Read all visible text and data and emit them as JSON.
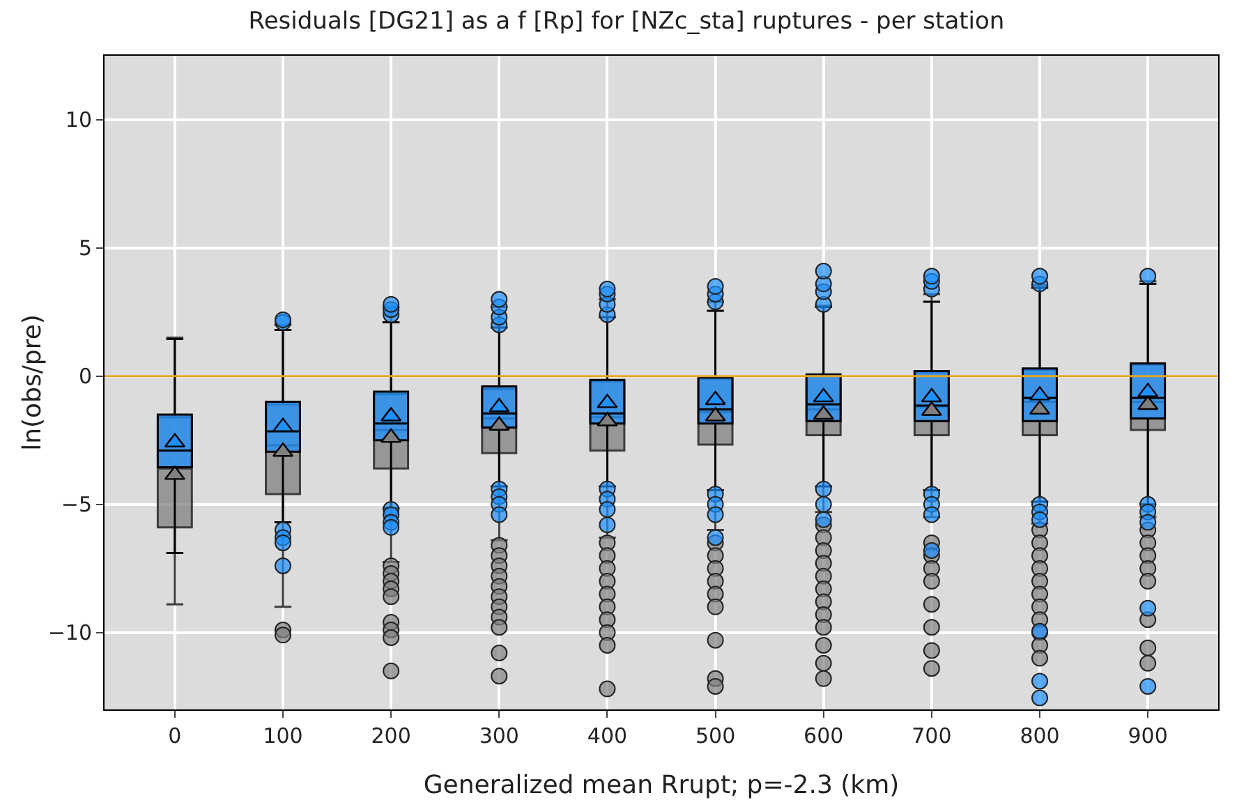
{
  "chart_data": {
    "type": "box",
    "title": "Residuals [DG21] as a f [Rp] for [NZc_sta] ruptures - per station",
    "xlabel": "Generalized mean Rrupt; p=-2.3 (km)",
    "ylabel": "ln(obs/pre)",
    "categories": [
      "0",
      "100",
      "200",
      "300",
      "400",
      "500",
      "600",
      "700",
      "800",
      "900"
    ],
    "ylim": [
      -13,
      12.5
    ],
    "yticks": [
      {
        "value": -10,
        "label": "−10"
      },
      {
        "value": -5,
        "label": "−5"
      },
      0,
      5,
      10
    ],
    "grid": true,
    "ref_lines": [
      {
        "axis": "y",
        "value": 0,
        "color": "#e0a526"
      }
    ],
    "series": [
      {
        "color": "#808080",
        "boxes": [
          {
            "low": -8.9,
            "q1": -5.9,
            "median": -3.6,
            "q3": -1.6,
            "high": 1.5,
            "mean": -3.85
          },
          {
            "low": -9.0,
            "q1": -4.6,
            "median": -2.7,
            "q3": -1.1,
            "high": 2.0,
            "mean": -2.95,
            "outliers": [
              -9.9,
              -10.1
            ]
          },
          {
            "low": -7.25,
            "q1": -3.6,
            "median": -2.1,
            "q3": -0.7,
            "high": 2.7,
            "mean": -2.4,
            "outliers": [
              -7.4,
              -7.7,
              -8.0,
              -8.3,
              -8.6,
              -9.6,
              -9.9,
              -10.2,
              -11.5
            ]
          },
          {
            "low": -6.4,
            "q1": -3.0,
            "median": -1.65,
            "q3": -0.5,
            "high": 2.7,
            "mean": -1.93,
            "outliers": [
              -6.6,
              -7.0,
              -7.4,
              -7.8,
              -8.2,
              -8.6,
              -9.0,
              -9.4,
              -9.8,
              -10.8,
              -11.7
            ]
          },
          {
            "low": -6.3,
            "q1": -2.9,
            "median": -1.6,
            "q3": -0.2,
            "high": 3.0,
            "mean": -1.76,
            "outliers": [
              -6.5,
              -7.0,
              -7.5,
              -8.0,
              -8.5,
              -9.0,
              -9.5,
              -10.0,
              -10.5,
              -12.2
            ]
          },
          {
            "low": -6.0,
            "q1": -2.67,
            "median": -1.4,
            "q3": -0.1,
            "high": 2.9,
            "mean": -1.57,
            "outliers": [
              -6.5,
              -7.0,
              -7.5,
              -8.0,
              -8.5,
              -9.0,
              -10.3,
              -11.8,
              -12.1
            ]
          },
          {
            "low": -5.3,
            "q1": -2.3,
            "median": -1.3,
            "q3": 0.0,
            "high": 2.75,
            "mean": -1.5,
            "outliers": [
              -5.8,
              -6.3,
              -6.8,
              -7.3,
              -7.8,
              -8.3,
              -8.8,
              -9.3,
              -9.8,
              -10.5,
              -11.2,
              -11.8
            ]
          },
          {
            "low": -5.5,
            "q1": -2.3,
            "median": -1.2,
            "q3": 0.15,
            "high": 3.2,
            "mean": -1.35,
            "outliers": [
              -6.5,
              -7.0,
              -7.5,
              -8.0,
              -8.9,
              -9.8,
              -10.7,
              -11.4
            ]
          },
          {
            "low": -5.75,
            "q1": -2.3,
            "median": -1.0,
            "q3": 0.25,
            "high": 3.55,
            "mean": -1.3,
            "outliers": [
              -6.0,
              -6.5,
              -7.0,
              -7.5,
              -8.0,
              -8.5,
              -9.0,
              -9.5,
              -10.0,
              -10.5,
              -11.0
            ]
          },
          {
            "low": -5.5,
            "q1": -2.1,
            "median": -1.0,
            "q3": 0.45,
            "high": 3.7,
            "mean": -1.12,
            "outliers": [
              -6.0,
              -6.5,
              -7.0,
              -7.5,
              -8.0,
              -9.5,
              -10.6,
              -11.2
            ]
          }
        ]
      },
      {
        "color": "#1e90ff",
        "boxes": [
          {
            "low": -6.9,
            "q1": -3.55,
            "median": -2.9,
            "q3": -1.5,
            "high": 1.45,
            "mean": -2.58
          },
          {
            "low": -5.7,
            "q1": -2.95,
            "median": -2.15,
            "q3": -1.0,
            "high": 1.8,
            "mean": -1.98,
            "outliers": [
              2.1,
              2.2,
              -6.0,
              -6.3,
              -6.5,
              -7.4
            ]
          },
          {
            "low": -5.15,
            "q1": -2.5,
            "median": -1.85,
            "q3": -0.6,
            "high": 2.1,
            "mean": -1.57,
            "outliers": [
              2.4,
              2.6,
              2.8,
              -5.2,
              -5.4,
              -5.7,
              -5.9
            ]
          },
          {
            "low": -4.3,
            "q1": -2.0,
            "median": -1.45,
            "q3": -0.4,
            "high": 1.9,
            "mean": -1.21,
            "outliers": [
              2.0,
              2.3,
              2.7,
              3.0,
              -4.4,
              -4.7,
              -5.0,
              -5.4
            ]
          },
          {
            "low": -4.3,
            "q1": -1.85,
            "median": -1.45,
            "q3": -0.15,
            "high": 2.3,
            "mean": -1.05,
            "outliers": [
              2.4,
              2.8,
              3.2,
              3.4,
              -4.4,
              -4.8,
              -5.2,
              -5.8
            ]
          },
          {
            "low": -4.45,
            "q1": -1.85,
            "median": -1.3,
            "q3": -0.05,
            "high": 2.55,
            "mean": -0.93,
            "outliers": [
              2.9,
              3.2,
              3.5,
              -4.6,
              -5.0,
              -5.4,
              -6.3
            ]
          },
          {
            "low": -4.3,
            "q1": -1.75,
            "median": -1.1,
            "q3": 0.07,
            "high": 2.7,
            "mean": -0.82,
            "outliers": [
              2.8,
              3.3,
              3.6,
              4.1,
              -4.4,
              -5.0,
              -5.6
            ]
          },
          {
            "low": -4.45,
            "q1": -1.75,
            "median": -1.15,
            "q3": 0.2,
            "high": 2.9,
            "mean": -0.82,
            "outliers": [
              3.4,
              3.7,
              3.9,
              -4.6,
              -5.0,
              -5.4,
              -6.8
            ]
          },
          {
            "low": -4.9,
            "q1": -1.75,
            "median": -0.85,
            "q3": 0.3,
            "high": 3.45,
            "mean": -0.75,
            "outliers": [
              3.6,
              3.9,
              -5.0,
              -5.3,
              -5.6,
              -9.95,
              -11.9,
              -12.55
            ]
          },
          {
            "low": -5.0,
            "q1": -1.65,
            "median": -0.85,
            "q3": 0.5,
            "high": 3.6,
            "mean": -0.62,
            "outliers": [
              3.9,
              -5.0,
              -5.3,
              -5.7,
              -9.05,
              -12.1
            ]
          }
        ]
      }
    ]
  }
}
